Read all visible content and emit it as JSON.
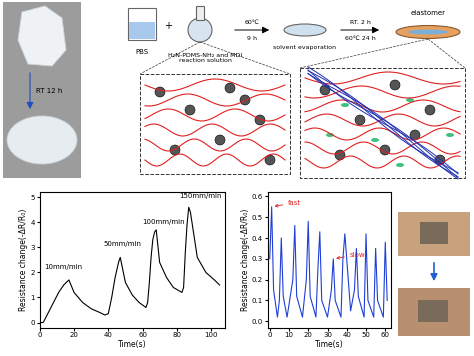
{
  "scheme": {
    "photo_label": "RT 12 h",
    "reagent_1": "PBS",
    "plus": "+",
    "reagent_2": "H₂N-PDMS-NH₂ and MDI\nreaction solution",
    "step_1_above": "60℃",
    "step_1_below": "9 h",
    "step_2": "solvent evaporation",
    "step_3_above": "RT. 2 h",
    "step_3_below": "60℃ 24 h",
    "product": "elastomer"
  },
  "chart_data": [
    {
      "type": "line",
      "x_label": "Time(s)",
      "y_label": "Resistance change(-ΔR/R₀)",
      "x": [
        0,
        2,
        5,
        8,
        11,
        14,
        17,
        20,
        25,
        30,
        35,
        38,
        40,
        42,
        44,
        46,
        47,
        50,
        54,
        58,
        62,
        63,
        64,
        65,
        66,
        67,
        68,
        70,
        74,
        78,
        83,
        84,
        85,
        86,
        87,
        88,
        92,
        97,
        102,
        105
      ],
      "series": [
        {
          "color": "#000000",
          "values": [
            0,
            0,
            0.4,
            0.8,
            1.2,
            1.5,
            1.7,
            1.2,
            0.8,
            0.55,
            0.4,
            0.3,
            0.35,
            1.0,
            1.8,
            2.4,
            2.6,
            1.6,
            1.1,
            0.8,
            0.6,
            0.8,
            1.6,
            2.6,
            3.3,
            3.6,
            3.7,
            2.4,
            1.8,
            1.4,
            1.2,
            1.4,
            2.8,
            3.9,
            4.6,
            4.4,
            2.6,
            2.0,
            1.7,
            1.5
          ]
        }
      ],
      "xlim": [
        0,
        108
      ],
      "xticks": [
        0,
        20,
        40,
        60,
        80,
        100
      ],
      "ylim": [
        -0.2,
        5.2
      ],
      "yticks": [
        0,
        1,
        2,
        3,
        4,
        5
      ],
      "annotations": [
        {
          "text": "10mm/min",
          "x": 14,
          "y": 2.1
        },
        {
          "text": "50mm/min",
          "x": 48,
          "y": 3.0
        },
        {
          "text": "100mm/min",
          "x": 72,
          "y": 3.9
        },
        {
          "text": "150mm/min",
          "x": 94,
          "y": 4.95
        }
      ]
    },
    {
      "type": "line",
      "x_label": "Time(s)",
      "y_label": "Resistance change(-ΔR/R₀)",
      "x": [
        0,
        1,
        2,
        4,
        5,
        6,
        7,
        9,
        12,
        13,
        14,
        17,
        19,
        20,
        21,
        24,
        25,
        26,
        27,
        30,
        32,
        33,
        34,
        37,
        38,
        39,
        42,
        44,
        45,
        46,
        49,
        50,
        51,
        54,
        55,
        56,
        59,
        60,
        61
      ],
      "series": [
        {
          "color": "#1f3fd6",
          "values": [
            0.3,
            0.55,
            0.15,
            0.02,
            0.1,
            0.4,
            0.12,
            0.02,
            0.2,
            0.46,
            0.12,
            0.02,
            0.2,
            0.48,
            0.12,
            0.02,
            0.25,
            0.43,
            0.1,
            0.02,
            0.15,
            0.3,
            0.1,
            0.02,
            0.3,
            0.42,
            0.05,
            0.15,
            0.35,
            0.12,
            0.02,
            0.42,
            0.1,
            0.02,
            0.35,
            0.1,
            0.02,
            0.38,
            0.1
          ]
        }
      ],
      "xlim": [
        -1,
        63
      ],
      "xticks": [
        0,
        10,
        20,
        30,
        40,
        50,
        60
      ],
      "ylim": [
        -0.03,
        0.62
      ],
      "yticks": [
        {
          "value": 0,
          "label": "0.0"
        },
        0.1,
        0.2,
        0.3,
        0.4,
        0.5,
        0.6
      ],
      "annotations": [
        {
          "text": "fast",
          "x": 1,
          "y": 0.55,
          "color": "#e02020"
        },
        {
          "text": "slow",
          "x": 33,
          "y": 0.3,
          "color": "#e02020"
        }
      ]
    }
  ]
}
